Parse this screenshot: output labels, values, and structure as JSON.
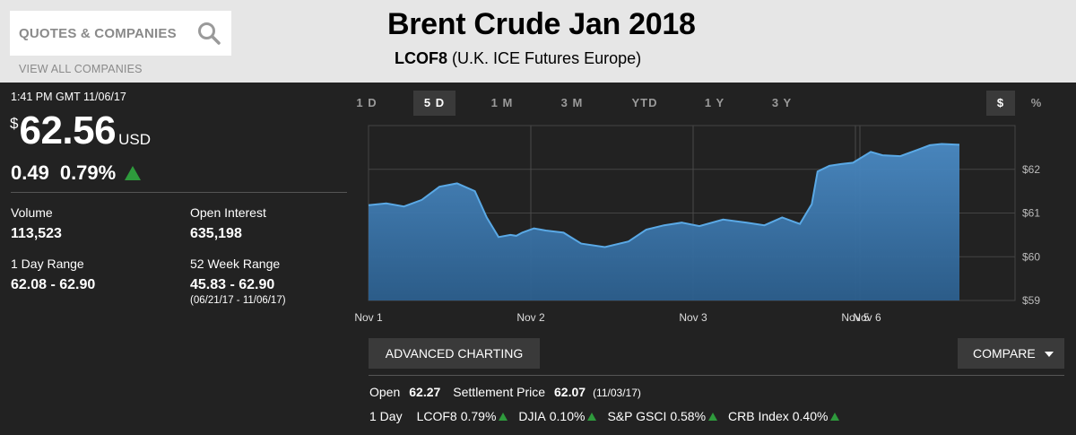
{
  "header": {
    "search_placeholder": "QUOTES & COMPANIES",
    "view_all": "VIEW ALL COMPANIES",
    "title": "Brent Crude Jan 2018",
    "symbol": "LCOF8",
    "exchange": "(U.K. ICE Futures Europe)"
  },
  "quote": {
    "timestamp": "1:41 PM GMT 11/06/17",
    "currency_symbol": "$",
    "price": "62.56",
    "unit": "USD",
    "change": "0.49",
    "change_pct": "0.79%"
  },
  "stats": {
    "volume_label": "Volume",
    "volume": "113,523",
    "open_interest_label": "Open Interest",
    "open_interest": "635,198",
    "day_range_label": "1 Day Range",
    "day_range": "62.08 - 62.90",
    "week52_label": "52 Week Range",
    "week52_range": "45.83 - 62.90",
    "week52_dates": "(06/21/17 - 11/06/17)"
  },
  "range_tabs": [
    "1 D",
    "5 D",
    "1 M",
    "3 M",
    "YTD",
    "1 Y",
    "3 Y"
  ],
  "active_range": "5 D",
  "unit_toggle": [
    "$",
    "%"
  ],
  "buttons": {
    "advanced_charting": "ADVANCED CHARTING",
    "compare": "COMPARE"
  },
  "bottom": {
    "open_label": "Open",
    "open_value": "62.27",
    "settlement_label": "Settlement Price",
    "settlement_value": "62.07",
    "settlement_date": "(11/03/17)",
    "day_label": "1 Day",
    "indices": [
      {
        "name": "LCOF8",
        "value": "0.79%"
      },
      {
        "name": "DJIA",
        "value": "0.10%"
      },
      {
        "name": "S&P GSCI",
        "value": "0.58%"
      },
      {
        "name": "CRB Index",
        "value": "0.40%"
      }
    ]
  },
  "colors": {
    "up": "#2e9a3c",
    "line": "#5aa9e6",
    "background": "#222222"
  },
  "chart_data": {
    "type": "area",
    "x_ticks": [
      "Nov 1",
      "Nov 2",
      "Nov 3",
      "Nov 5",
      "Nov 6"
    ],
    "y_ticks": [
      "$62",
      "$61",
      "$60",
      "$59"
    ],
    "ylim": [
      59,
      63
    ],
    "x": [
      0,
      0.03,
      0.06,
      0.09,
      0.12,
      0.15,
      0.18,
      0.2,
      0.22,
      0.24,
      0.25,
      0.26,
      0.28,
      0.3,
      0.33,
      0.36,
      0.4,
      0.44,
      0.47,
      0.5,
      0.53,
      0.56,
      0.6,
      0.64,
      0.67,
      0.7,
      0.73,
      0.75,
      0.76,
      0.78,
      0.8,
      0.82,
      0.85,
      0.87,
      0.9,
      0.93,
      0.95,
      0.97,
      1.0
    ],
    "values": [
      61.18,
      61.22,
      61.15,
      61.3,
      61.6,
      61.68,
      61.5,
      60.9,
      60.45,
      60.5,
      60.48,
      60.55,
      60.65,
      60.6,
      60.55,
      60.3,
      60.22,
      60.35,
      60.62,
      60.72,
      60.78,
      60.7,
      60.85,
      60.78,
      60.72,
      60.9,
      60.75,
      61.2,
      61.95,
      62.08,
      62.12,
      62.15,
      62.4,
      62.32,
      62.3,
      62.45,
      62.55,
      62.58,
      62.56
    ]
  }
}
